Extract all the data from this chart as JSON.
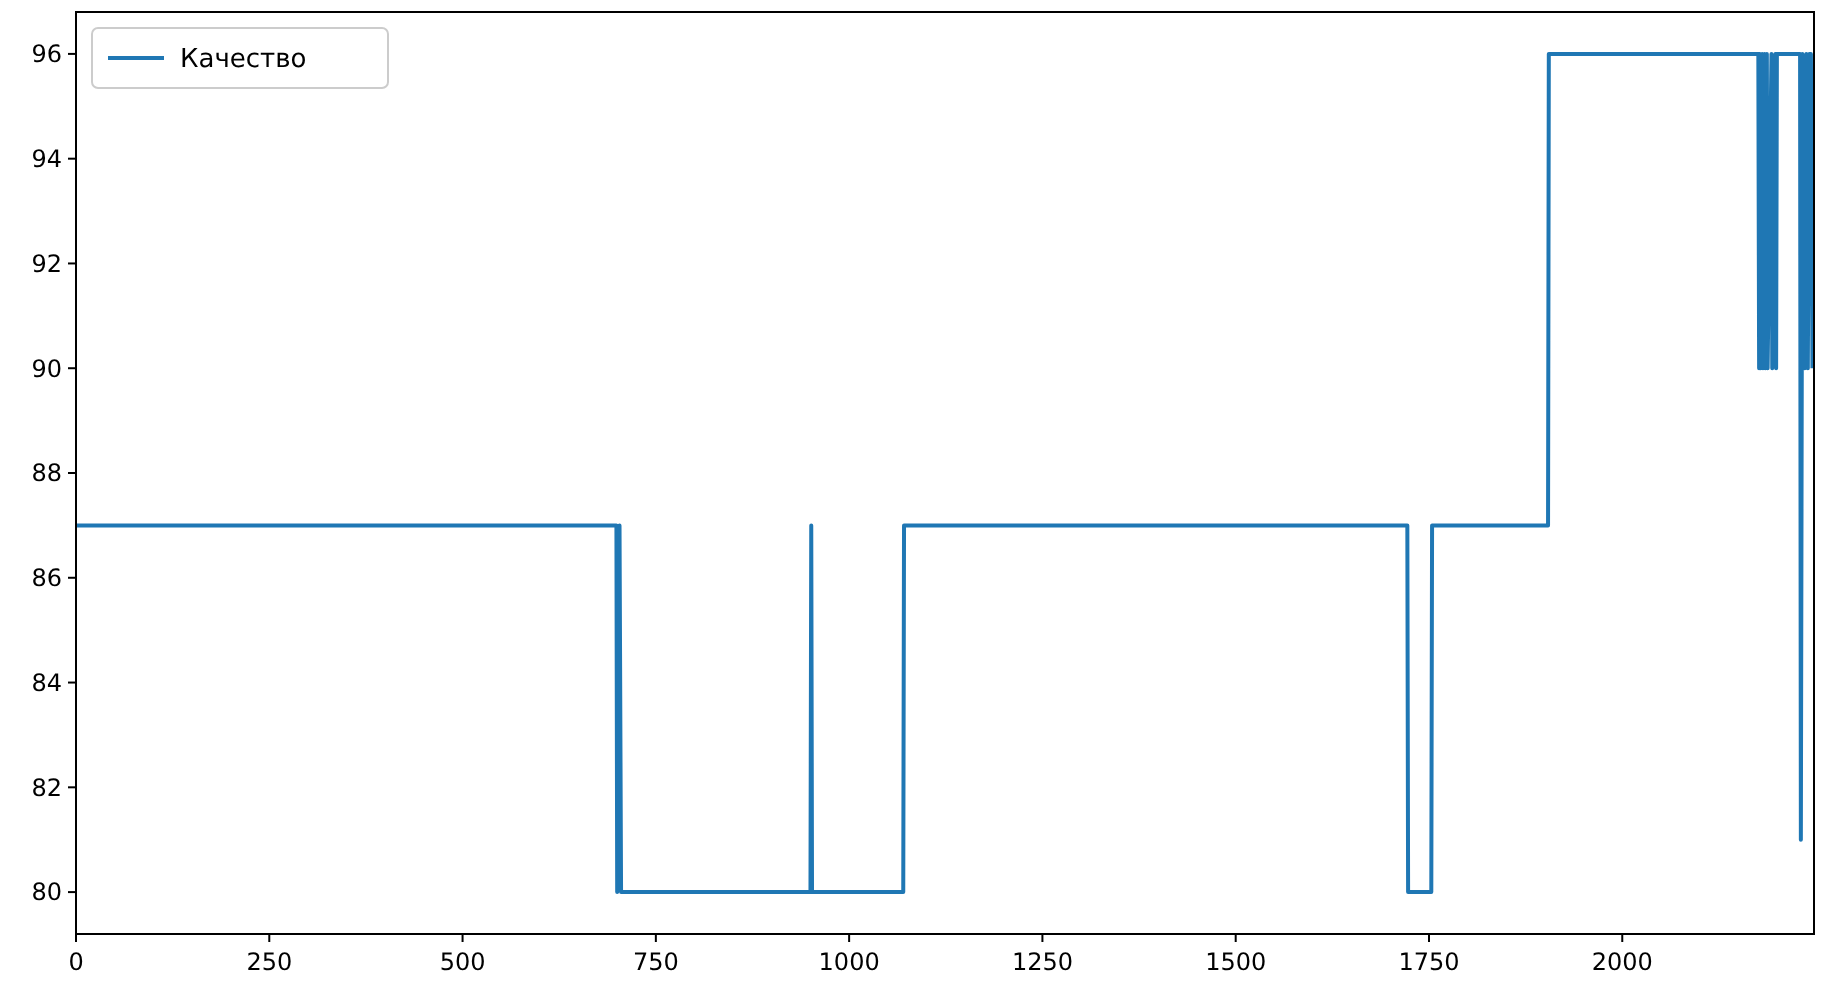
{
  "chart_data": {
    "type": "line",
    "x": [
      0,
      699,
      700,
      703,
      705,
      950,
      951,
      952,
      1070,
      1071,
      1722,
      1723,
      1753,
      1754,
      1904,
      1905,
      2176,
      2177,
      2178,
      2179,
      2181,
      2182,
      2184,
      2185,
      2187,
      2188,
      2193,
      2194,
      2198,
      2199,
      2200,
      2230,
      2231,
      2233,
      2236,
      2238,
      2240,
      2242,
      2244,
      2246
    ],
    "series": [
      {
        "name": "Качество",
        "color": "#1f77b4",
        "values": [
          87,
          87,
          80,
          87,
          80,
          80,
          87,
          80,
          80,
          87,
          87,
          80,
          80,
          87,
          87,
          96,
          96,
          90,
          96,
          90,
          96,
          90,
          96,
          90,
          96,
          90,
          96,
          90,
          96,
          90,
          96,
          96,
          81,
          96,
          90,
          96,
          90,
          96,
          96,
          90
        ]
      }
    ],
    "xlim": [
      0,
      2248
    ],
    "ylim": [
      79.2,
      96.8
    ],
    "xticks": [
      0,
      250,
      500,
      750,
      1000,
      1250,
      1500,
      1750,
      2000
    ],
    "yticks": [
      80,
      82,
      84,
      86,
      88,
      90,
      92,
      94,
      96
    ],
    "grid": false,
    "legend": "top left",
    "marker": "none",
    "line_style": "solid"
  }
}
